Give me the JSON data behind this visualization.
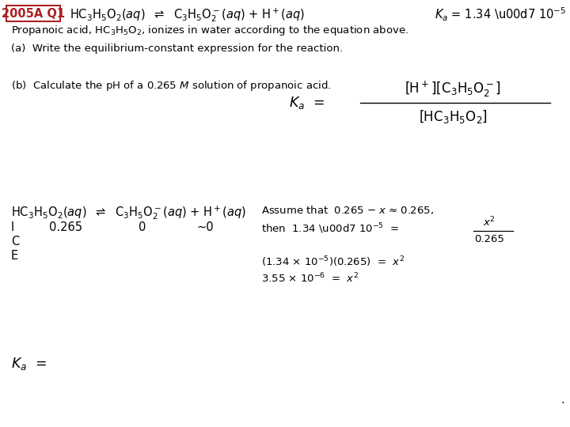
{
  "bg_color": "#ffffff",
  "box_label": "2005A Q1",
  "box_color": "#aa2222",
  "line1": "Propanoic acid, HC$_3$H$_5$O$_2$, ionizes in water according to the equation above.",
  "line_a": "(a)  Write the equilibrium-constant expression for the reaction.",
  "line_b": "(b)  Calculate the pH of a 0.265 $M$ solution of propanoic acid.",
  "assume_text": "Assume that  0.265 − $x$ ≈ 0.265,",
  "step2": "(1.34 × 10$^{-5}$)(0.265)  =  $x^2$",
  "step3": "3.55 × 10$^{-6}$  =  $x^2$"
}
